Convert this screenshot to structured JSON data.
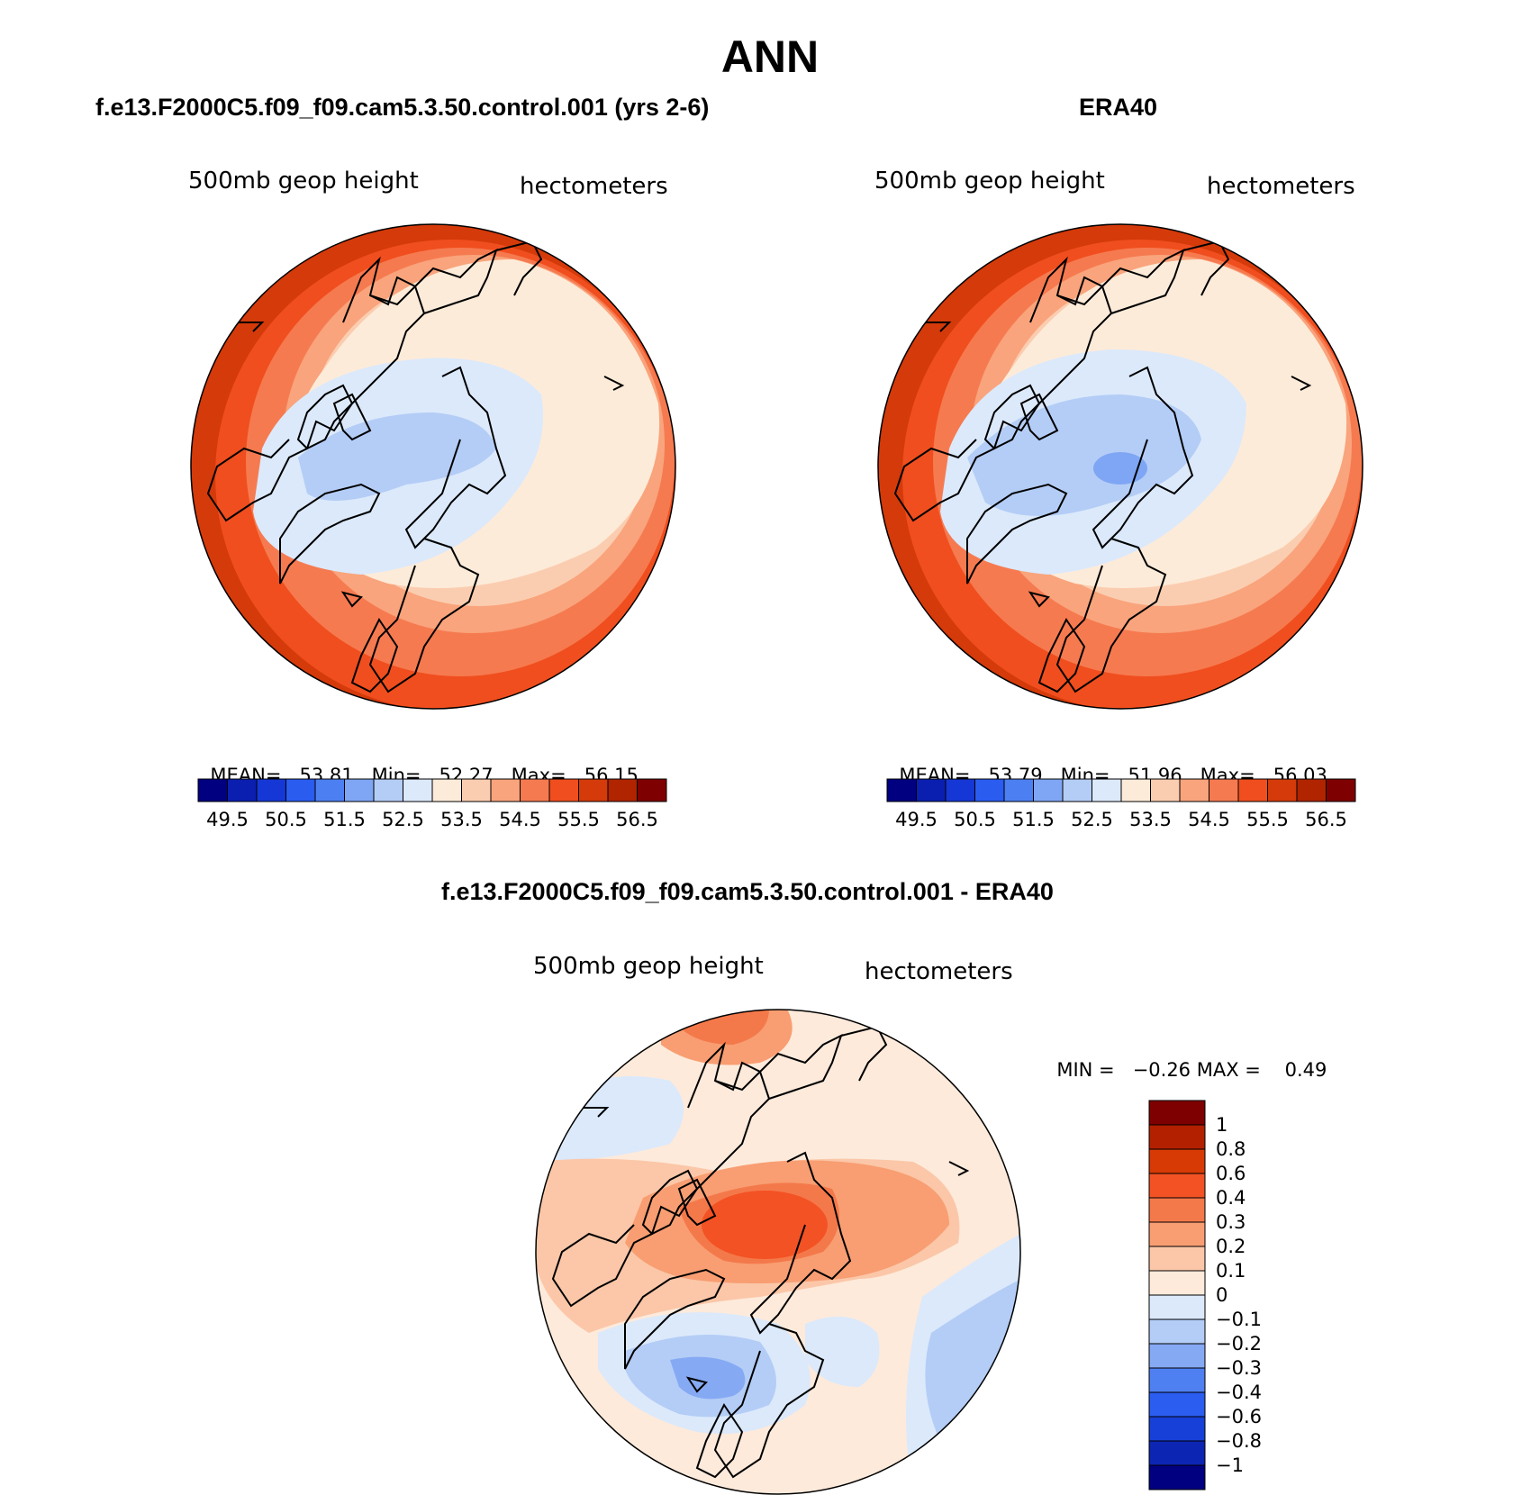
{
  "figure": {
    "title": "ANN"
  },
  "panels": [
    {
      "id": "model",
      "title": "f.e13.F2000C5.f09_f09.cam5.3.50.control.001 (yrs 2-6)",
      "variable": "500mb geop height",
      "units": "hectometers",
      "stats": {
        "mean_label": "MEAN=",
        "mean": "53.81",
        "min_label": "Min=",
        "min": "52.27",
        "max_label": "Max=",
        "max": "56.15"
      }
    },
    {
      "id": "obs",
      "title": "ERA40",
      "variable": "500mb geop height",
      "units": "hectometers",
      "stats": {
        "mean_label": "MEAN=",
        "mean": "53.79",
        "min_label": "Min=",
        "min": "51.96",
        "max_label": "Max=",
        "max": "56.03"
      }
    },
    {
      "id": "diff",
      "title": "f.e13.F2000C5.f09_f09.cam5.3.50.control.001 - ERA40",
      "variable": "500mb geop height",
      "units": "hectometers",
      "stats": {
        "min_label": "MIN =",
        "min": "−0.26",
        "max_label": "MAX =",
        "max": "0.49"
      }
    }
  ],
  "colorbars": {
    "absolute": {
      "colors": [
        "#000080",
        "#0a1fb0",
        "#1537d6",
        "#2a5cf0",
        "#4c80f2",
        "#7fa6f4",
        "#b4cdf6",
        "#dbe9fb",
        "#fdebd9",
        "#fbcdb0",
        "#f9a47c",
        "#f67a50",
        "#f04e1e",
        "#d43a0a",
        "#b02400",
        "#7f0000"
      ],
      "tick_labels": [
        "49.5",
        "50.5",
        "51.5",
        "52.5",
        "53.5",
        "54.5",
        "55.5",
        "56.5"
      ]
    },
    "difference": {
      "colors": [
        "#7f0000",
        "#b32000",
        "#d83a05",
        "#f35224",
        "#f4794a",
        "#f89e72",
        "#fbc7a8",
        "#fdeadb",
        "#dbe9fb",
        "#b4cdf6",
        "#86a9f4",
        "#4f80f2",
        "#2a5df0",
        "#1740d8",
        "#0d25b3",
        "#000080"
      ],
      "tick_labels": [
        "1",
        "0.8",
        "0.6",
        "0.4",
        "0.3",
        "0.2",
        "0.1",
        "0",
        "−0.1",
        "−0.2",
        "−0.3",
        "−0.4",
        "−0.6",
        "−0.8",
        "−1"
      ]
    }
  },
  "map_colors": {
    "z49": "#000080",
    "z50": "#1537d6",
    "z51": "#4c80f2",
    "z515": "#7fa6f4",
    "z52": "#b4cdf6",
    "z525": "#dbe9fb",
    "z53": "#fdebd9",
    "z535": "#fbcdb0",
    "z54": "#f9a47c",
    "z545": "#f67a50",
    "z55": "#f04e1e",
    "z555": "#d43a0a",
    "z56": "#b02400",
    "d_neg3": "#4f80f2",
    "d_neg2": "#86a9f4",
    "d_neg1": "#b4cdf6",
    "d_neg0": "#dbe9fb",
    "d_pos0": "#fdeadb",
    "d_pos1": "#fbc7a8",
    "d_pos2": "#f89e72",
    "d_pos3": "#f4794a",
    "d_pos4": "#f35224"
  }
}
